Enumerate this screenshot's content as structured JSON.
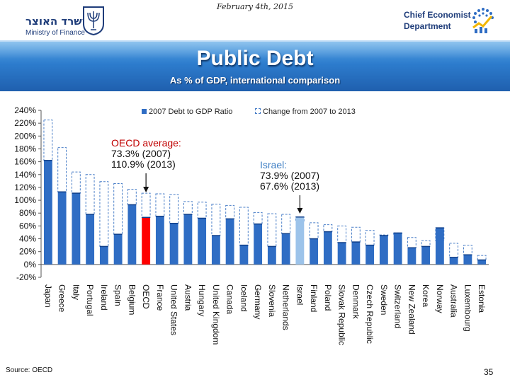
{
  "header": {
    "date": "February 4th, 2015",
    "ministry_hebrew": "משרד האוצר",
    "ministry_english": "Ministry of Finance",
    "department_line1": "Chief Economist",
    "department_line2": "Department"
  },
  "title": "Public Debt",
  "subtitle": "As % of GDP, international comparison",
  "footer": {
    "source": "Source: OECD",
    "page_number": "35"
  },
  "annotations": {
    "oecd": {
      "line1": "OECD average:",
      "line2": "73.3% (2007)",
      "line3": "110.9% (2013)"
    },
    "israel": {
      "line1": "Israel:",
      "line2": "73.9% (2007)",
      "line3": "67.6% (2013)"
    }
  },
  "colors": {
    "bar": "#2f6dc4",
    "oecd_bar": "#ff0000",
    "israel_bar": "#9cc3ea",
    "dashed": "#4a7fc8",
    "oecd_text": "#c00000",
    "israel_text": "#3f7fc4"
  },
  "chart_data": {
    "type": "bar",
    "title": "Public Debt",
    "subtitle": "As % of GDP, international comparison",
    "ylim": [
      -20,
      240
    ],
    "yticks": [
      "-20%",
      "0%",
      "20%",
      "40%",
      "60%",
      "80%",
      "100%",
      "120%",
      "140%",
      "160%",
      "180%",
      "200%",
      "220%",
      "240%"
    ],
    "legend_position": "top",
    "grid": false,
    "categories": [
      "Japan",
      "Greece",
      "Italy",
      "Portugal",
      "Ireland",
      "Spain",
      "Belgium",
      "OECD",
      "France",
      "United States",
      "Austria",
      "Hungary",
      "United Kingdom",
      "Canada",
      "Iceland",
      "Germany",
      "Slovenia",
      "Netherlands",
      "Israel",
      "Finland",
      "Poland",
      "Slovak Republic",
      "Denmark",
      "Czech Republic",
      "Sweden",
      "Switzerland",
      "New Zealand",
      "Korea",
      "Norway",
      "Australia",
      "Luxembourg",
      "Estonia"
    ],
    "series": [
      {
        "name": "2007 Debt to GDP Ratio",
        "values": [
          162,
          113,
          111,
          78,
          28,
          47,
          93,
          73.3,
          75,
          64,
          78,
          72,
          45,
          71,
          30,
          63,
          28,
          48,
          73.9,
          40,
          51,
          34,
          35,
          30,
          45,
          49,
          26,
          28,
          57,
          11,
          15,
          7
        ]
      },
      {
        "name": "Change from 2007 to 2013",
        "values": [
          225,
          182,
          144,
          140,
          129,
          126,
          117,
          110.9,
          110,
          109,
          98,
          97,
          94,
          92,
          89,
          81,
          79,
          78,
          67.6,
          65,
          62,
          60,
          58,
          53,
          46,
          47,
          42,
          37,
          37,
          33,
          30,
          14
        ]
      }
    ]
  }
}
